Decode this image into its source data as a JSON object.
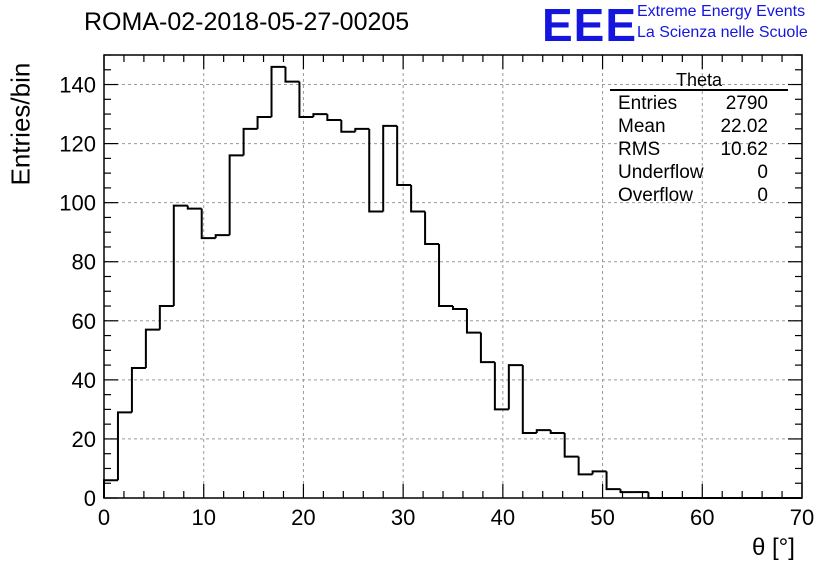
{
  "title": "ROMA-02-2018-05-27-00205",
  "logo": {
    "mark": "EEE",
    "line1": "Extreme Energy Events",
    "line2": "La Scienza nelle Scuole"
  },
  "stats": {
    "name": "Theta",
    "rows": [
      {
        "label": "Entries",
        "value": "2790"
      },
      {
        "label": "Mean",
        "value": "22.02"
      },
      {
        "label": "RMS",
        "value": "10.62"
      },
      {
        "label": "Underflow",
        "value": "0"
      },
      {
        "label": "Overflow",
        "value": "0"
      }
    ]
  },
  "chart_data": {
    "type": "bar",
    "style": "histogram-step",
    "xlabel": "θ [°]",
    "ylabel": "Entries/bin",
    "xlim": [
      0,
      70
    ],
    "ylim": [
      0,
      150
    ],
    "grid": true,
    "x_ticks": [
      0,
      10,
      20,
      30,
      40,
      50,
      60,
      70
    ],
    "y_ticks": [
      0,
      20,
      40,
      60,
      80,
      100,
      120,
      140
    ],
    "bin_width": 1.4,
    "bin_edges_start": 0,
    "values": [
      6,
      29,
      44,
      57,
      65,
      99,
      98,
      88,
      89,
      116,
      125,
      129,
      146,
      141,
      129,
      130,
      128,
      124,
      125,
      97,
      126,
      106,
      97,
      86,
      65,
      64,
      56,
      46,
      30,
      45,
      22,
      23,
      22,
      14,
      8,
      9,
      3,
      2,
      2,
      0,
      0,
      0,
      0,
      0,
      0,
      0,
      0,
      0,
      0,
      0
    ]
  }
}
